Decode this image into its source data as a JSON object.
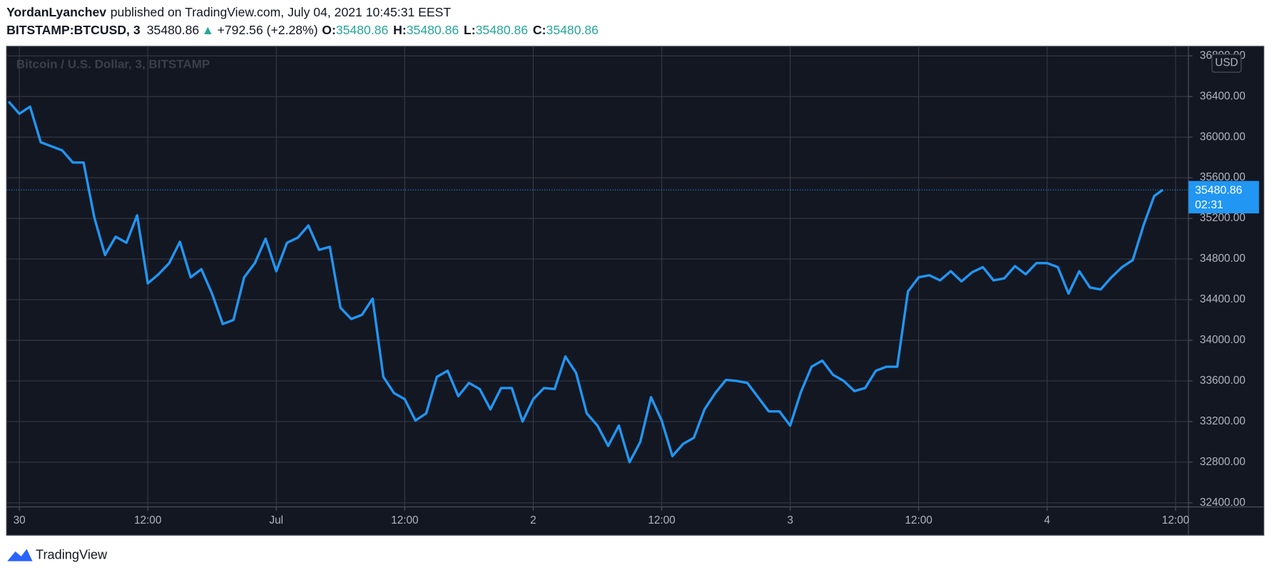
{
  "header": {
    "author": "YordanLyanchev",
    "published": "published on TradingView.com, July 04, 2021 10:45:31 EEST",
    "symbol": "BITSTAMP:BTCUSD, 3",
    "price": "35480.86",
    "arrow": "▲",
    "change": "+792.56 (+2.28%)",
    "ohlc": [
      {
        "label": "O:",
        "value": "35480.86"
      },
      {
        "label": "H:",
        "value": "35480.86"
      },
      {
        "label": "L:",
        "value": "35480.86"
      },
      {
        "label": "C:",
        "value": "35480.86"
      }
    ]
  },
  "chart_data": {
    "type": "line",
    "title": "Bitcoin / U.S. Dollar, 3, BITSTAMP",
    "currency": "USD",
    "countdown": "02:31",
    "grid": true,
    "x": [
      -1,
      0,
      1,
      2,
      3,
      4,
      5,
      6,
      7,
      8,
      9,
      10,
      11,
      12,
      13,
      14,
      15,
      16,
      17,
      18,
      19,
      20,
      21,
      22,
      23,
      24,
      25,
      26,
      27,
      28,
      29,
      30,
      31,
      32,
      33,
      34,
      35,
      36,
      37,
      38,
      39,
      40,
      41,
      42,
      43,
      44,
      45,
      46,
      47,
      48,
      49,
      50,
      51,
      52,
      53,
      54,
      55,
      56,
      57,
      58,
      59,
      60,
      61,
      62,
      63,
      64,
      65,
      66,
      67,
      68,
      69,
      70,
      71,
      72,
      73,
      74,
      75,
      76,
      77,
      78,
      79,
      80,
      81,
      82,
      83,
      84,
      85,
      86,
      87,
      88,
      89,
      90,
      91,
      92,
      93,
      94,
      95,
      96,
      97,
      98,
      99,
      100,
      101,
      102,
      103,
      104,
      105,
      106,
      106.8
    ],
    "series": [
      {
        "name": "BTCUSD",
        "color": "#2196f3",
        "values": [
          36350,
          36230,
          36300,
          35950,
          35910,
          35870,
          35750,
          35750,
          35210,
          34840,
          35020,
          34960,
          35230,
          34560,
          34650,
          34760,
          34970,
          34620,
          34700,
          34460,
          34160,
          34200,
          34620,
          34760,
          35000,
          34680,
          34960,
          35010,
          35130,
          34890,
          34920,
          34320,
          34210,
          34250,
          34410,
          33640,
          33480,
          33420,
          33210,
          33280,
          33640,
          33700,
          33450,
          33580,
          33520,
          33320,
          33530,
          33530,
          33200,
          33420,
          33530,
          33520,
          33840,
          33680,
          33280,
          33160,
          32960,
          33160,
          32800,
          33000,
          33440,
          33210,
          32860,
          32980,
          33040,
          33320,
          33480,
          33610,
          33600,
          33580,
          33440,
          33300,
          33300,
          33160,
          33490,
          33740,
          33800,
          33660,
          33600,
          33500,
          33530,
          33700,
          33740,
          33740,
          34480,
          34620,
          34640,
          34590,
          34680,
          34580,
          34670,
          34720,
          34590,
          34610,
          34730,
          34650,
          34760,
          34760,
          34720,
          34460,
          34680,
          34520,
          34500,
          34620,
          34720,
          34790,
          35130,
          35420,
          35480.86
        ]
      }
    ],
    "xlim": [
      -1.2,
      109.2
    ],
    "xticks": [
      {
        "value": 0,
        "label": "30"
      },
      {
        "value": 12,
        "label": "12:00"
      },
      {
        "value": 24,
        "label": "Jul"
      },
      {
        "value": 36,
        "label": "12:00"
      },
      {
        "value": 48,
        "label": "2"
      },
      {
        "value": 60,
        "label": "12:00"
      },
      {
        "value": 72,
        "label": "3"
      },
      {
        "value": 84,
        "label": "12:00"
      },
      {
        "value": 96,
        "label": "4"
      },
      {
        "value": 108,
        "label": "12:00"
      }
    ],
    "ylim": [
      32360,
      36895
    ],
    "yticks": [
      {
        "value": 32400,
        "label": "32400.00"
      },
      {
        "value": 32800,
        "label": "32800.00"
      },
      {
        "value": 33200,
        "label": "33200.00"
      },
      {
        "value": 33600,
        "label": "33600.00"
      },
      {
        "value": 34000,
        "label": "34000.00"
      },
      {
        "value": 34400,
        "label": "34400.00"
      },
      {
        "value": 34800,
        "label": "34800.00"
      },
      {
        "value": 35200,
        "label": "35200.00"
      },
      {
        "value": 35600,
        "label": "35600.00"
      },
      {
        "value": 36000,
        "label": "36000.00"
      },
      {
        "value": 36400,
        "label": "36400.00"
      },
      {
        "value": 36800,
        "label": "36800.00"
      }
    ]
  },
  "footer": {
    "brand": "TradingView"
  }
}
